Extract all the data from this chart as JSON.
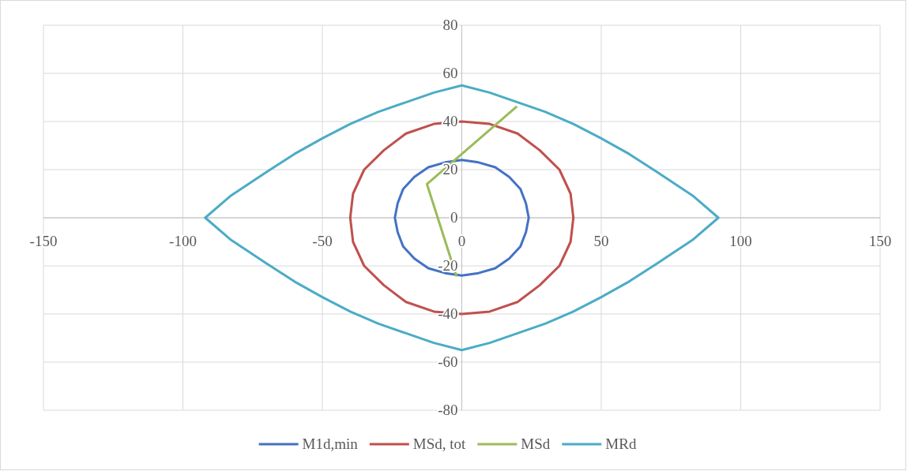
{
  "chart_data": {
    "type": "line",
    "xlim": [
      -150,
      150
    ],
    "ylim": [
      -80,
      80
    ],
    "xticks": [
      -150,
      -100,
      -50,
      0,
      50,
      100,
      150
    ],
    "yticks": [
      -80,
      -60,
      -40,
      -20,
      0,
      20,
      40,
      60,
      80
    ],
    "grid": true,
    "legend": "bottom",
    "marker": "none",
    "line_style": "solid",
    "series": [
      {
        "name": "M1d,min",
        "color": "#4472c4",
        "x": [
          -24,
          -23,
          -21,
          -17,
          -12,
          -6,
          0,
          6,
          12,
          17,
          21,
          23,
          24,
          null,
          -24,
          -23,
          -21,
          -17,
          -12,
          -6,
          0,
          6,
          12,
          17,
          21,
          23,
          24
        ],
        "values": [
          0,
          6,
          12,
          17,
          21,
          23,
          24,
          23,
          21,
          17,
          12,
          6,
          0,
          null,
          0,
          -6,
          -12,
          -17,
          -21,
          -23,
          -24,
          -23,
          -21,
          -17,
          -12,
          -6,
          0
        ]
      },
      {
        "name": "MSd, tot",
        "color": "#c0504d",
        "x": [
          -40,
          -39,
          -35,
          -28,
          -20,
          -10,
          0,
          10,
          20,
          28,
          35,
          39,
          40,
          null,
          -40,
          -39,
          -35,
          -28,
          -20,
          -10,
          0,
          10,
          20,
          28,
          35,
          39,
          40
        ],
        "values": [
          0,
          10,
          20,
          28,
          35,
          39,
          40,
          39,
          35,
          28,
          20,
          10,
          0,
          null,
          0,
          -10,
          -20,
          -28,
          -35,
          -39,
          -40,
          -39,
          -35,
          -28,
          -20,
          -10,
          0
        ]
      },
      {
        "name": "MSd",
        "color": "#9bbb59",
        "x": [
          -2,
          -12.5,
          19.5
        ],
        "values": [
          -24,
          14,
          46
        ]
      },
      {
        "name": "MRd",
        "color": "#4bacc6",
        "x": [
          -92,
          -83,
          -70,
          -60,
          -50,
          -40,
          -30,
          -20,
          -10,
          0,
          10,
          20,
          30,
          40,
          50,
          60,
          70,
          83,
          92,
          null,
          -92,
          -83,
          -70,
          -60,
          -50,
          -40,
          -30,
          -20,
          -10,
          0,
          10,
          20,
          30,
          40,
          50,
          60,
          70,
          83,
          92
        ],
        "values": [
          0,
          9,
          19,
          26.5,
          33,
          39,
          44,
          48,
          52,
          55,
          52,
          48,
          44,
          39,
          33,
          26.5,
          19,
          9,
          0,
          null,
          0,
          -9,
          -19,
          -26.5,
          -33,
          -39,
          -44,
          -48,
          -52,
          -55,
          -52,
          -48,
          -44,
          -39,
          -33,
          -26.5,
          -19,
          -9,
          0
        ]
      }
    ]
  }
}
